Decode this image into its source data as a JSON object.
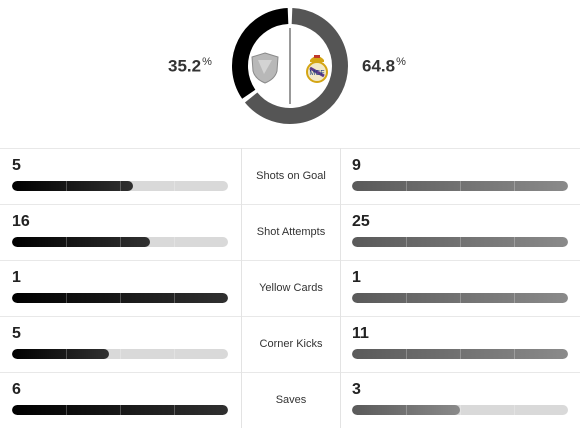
{
  "possession": {
    "away_value": "35.2",
    "home_value": "64.8",
    "percent_symbol": "%",
    "away_fraction": 0.352,
    "home_fraction": 0.648,
    "away_color": "#000000",
    "home_color": "#555555"
  },
  "stats": [
    {
      "label": "Shots on Goal",
      "away": "5",
      "home": "9",
      "away_fill": 0.56,
      "home_fill": 1.0
    },
    {
      "label": "Shot Attempts",
      "away": "16",
      "home": "25",
      "away_fill": 0.64,
      "home_fill": 1.0
    },
    {
      "label": "Yellow Cards",
      "away": "1",
      "home": "1",
      "away_fill": 1.0,
      "home_fill": 1.0
    },
    {
      "label": "Corner Kicks",
      "away": "5",
      "home": "11",
      "away_fill": 0.45,
      "home_fill": 1.0
    },
    {
      "label": "Saves",
      "away": "6",
      "home": "3",
      "away_fill": 1.0,
      "home_fill": 0.5
    }
  ],
  "crests": {
    "away_icon": "generic-shield-icon",
    "home_icon": "real-madrid-crest-icon"
  }
}
